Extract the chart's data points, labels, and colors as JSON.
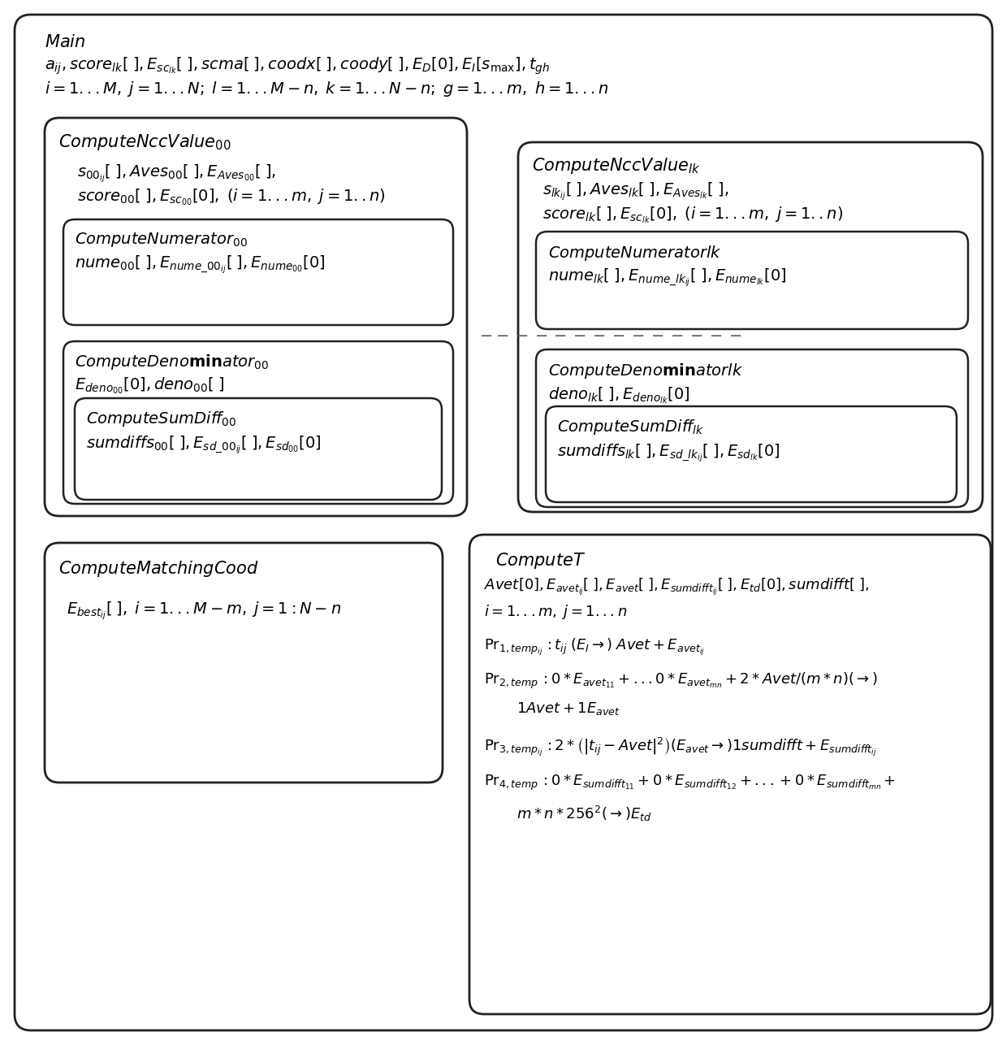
{
  "bg_color": "#ffffff",
  "fig_width": 12.4,
  "fig_height": 12.86,
  "fs_main": 14,
  "fs_body": 13,
  "fs_small": 12
}
